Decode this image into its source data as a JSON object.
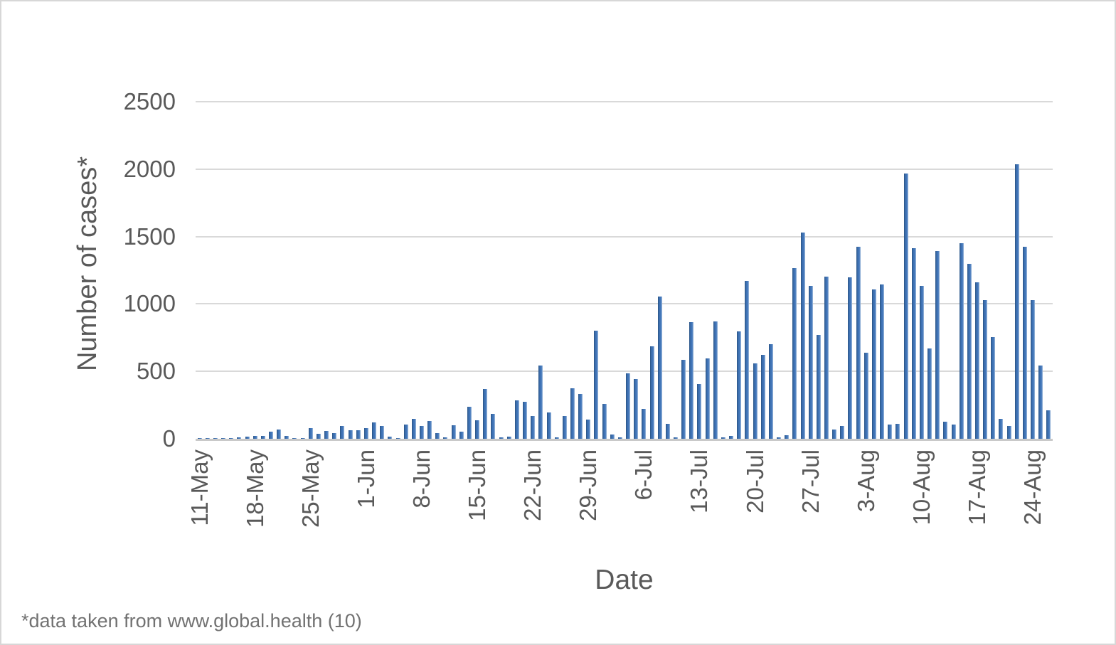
{
  "figure": {
    "footnote": "*data taken from www.global.health (10)"
  },
  "chart_data": {
    "type": "bar",
    "title": "",
    "xlabel": "Date",
    "ylabel": "Number of cases*",
    "ylim": [
      0,
      2500
    ],
    "yticks": [
      0,
      500,
      1000,
      1500,
      2000,
      2500
    ],
    "grid": "horizontal",
    "legend_position": "none",
    "x_tick_every": 7,
    "bar_color": "#3f73b6",
    "gridline_color": "#d9d9d9",
    "axis_line_color": "#c9c9c9",
    "axis_text_color": "#595959",
    "categories": [
      "11-May",
      "12-May",
      "13-May",
      "14-May",
      "15-May",
      "16-May",
      "17-May",
      "18-May",
      "19-May",
      "20-May",
      "21-May",
      "22-May",
      "23-May",
      "24-May",
      "25-May",
      "26-May",
      "27-May",
      "28-May",
      "29-May",
      "30-May",
      "31-May",
      "1-Jun",
      "2-Jun",
      "3-Jun",
      "4-Jun",
      "5-Jun",
      "6-Jun",
      "7-Jun",
      "8-Jun",
      "9-Jun",
      "10-Jun",
      "11-Jun",
      "12-Jun",
      "13-Jun",
      "14-Jun",
      "15-Jun",
      "16-Jun",
      "17-Jun",
      "18-Jun",
      "19-Jun",
      "20-Jun",
      "21-Jun",
      "22-Jun",
      "23-Jun",
      "24-Jun",
      "25-Jun",
      "26-Jun",
      "27-Jun",
      "28-Jun",
      "29-Jun",
      "30-Jun",
      "1-Jul",
      "2-Jul",
      "3-Jul",
      "4-Jul",
      "5-Jul",
      "6-Jul",
      "7-Jul",
      "8-Jul",
      "9-Jul",
      "10-Jul",
      "11-Jul",
      "12-Jul",
      "13-Jul",
      "14-Jul",
      "15-Jul",
      "16-Jul",
      "17-Jul",
      "18-Jul",
      "19-Jul",
      "20-Jul",
      "21-Jul",
      "22-Jul",
      "23-Jul",
      "24-Jul",
      "25-Jul",
      "26-Jul",
      "27-Jul",
      "28-Jul",
      "29-Jul",
      "30-Jul",
      "31-Jul",
      "1-Aug",
      "2-Aug",
      "3-Aug",
      "4-Aug",
      "5-Aug",
      "6-Aug",
      "7-Aug",
      "8-Aug",
      "9-Aug",
      "10-Aug",
      "11-Aug",
      "12-Aug",
      "13-Aug",
      "14-Aug",
      "15-Aug",
      "16-Aug",
      "17-Aug",
      "18-Aug",
      "19-Aug",
      "20-Aug",
      "21-Aug",
      "22-Aug",
      "23-Aug",
      "24-Aug",
      "25-Aug",
      "26-Aug"
    ],
    "values": [
      2,
      2,
      3,
      4,
      5,
      8,
      15,
      23,
      23,
      51,
      67,
      19,
      5,
      3,
      81,
      37,
      58,
      40,
      93,
      63,
      61,
      79,
      123,
      96,
      14,
      5,
      105,
      149,
      96,
      132,
      44,
      8,
      100,
      52,
      235,
      136,
      367,
      183,
      12,
      15,
      283,
      274,
      167,
      545,
      196,
      10,
      168,
      376,
      333,
      145,
      800,
      261,
      33,
      12,
      487,
      443,
      222,
      686,
      1056,
      113,
      9,
      583,
      867,
      405,
      597,
      869,
      13,
      21,
      799,
      1171,
      557,
      620,
      703,
      9,
      26,
      1264,
      1531,
      1136,
      768,
      1202,
      71,
      97,
      1197,
      1422,
      636,
      1106,
      1145,
      103,
      110,
      1966,
      1413,
      1132,
      671,
      1390,
      127,
      106,
      1453,
      1299,
      1162,
      1027,
      752,
      150,
      94,
      2036,
      1422,
      1028,
      541,
      211
    ]
  }
}
